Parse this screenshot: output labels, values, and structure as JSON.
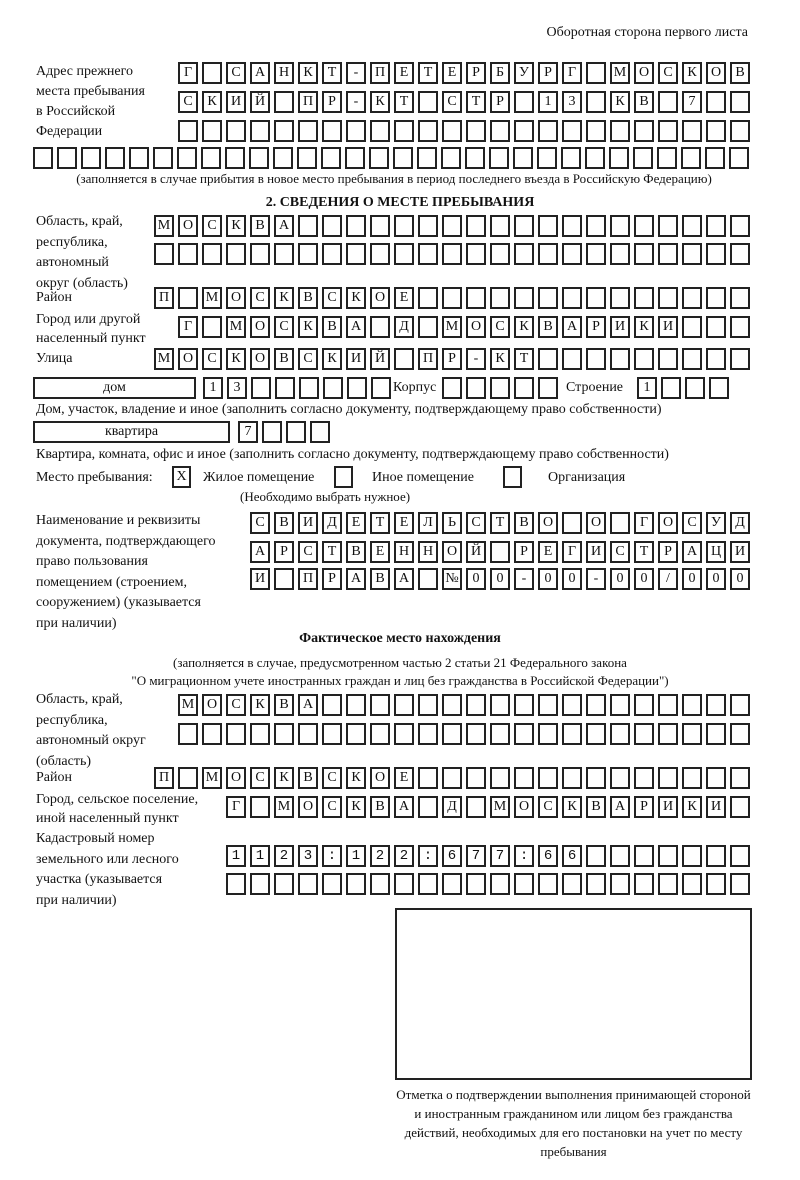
{
  "header": "Оборотная сторона первого листа",
  "prev_address": {
    "label": "Адрес прежнего\nместа пребывания\nв Российской\nФедерации",
    "rows": [
      "Г САНКТ-ПЕТЕРБУРГ МОСКОВ",
      "СКИЙ ПР-КТ СТР 13 КВ 7",
      "",
      ""
    ],
    "note": "(заполняется в случае прибытия в новое место пребывания в период последнего въезда в Российскую Федерацию)"
  },
  "section2": {
    "title": "2. СВЕДЕНИЯ О МЕСТЕ ПРЕБЫВАНИЯ",
    "region_label": "Область, край,\nреспублика,\nавтономный\nокруг (область)",
    "region_rows": [
      "МОСКВА",
      ""
    ],
    "district_label": "Район",
    "district": "П МОСКВСКОЕ",
    "city_label": "Город или другой\nнаселенный пункт",
    "city": "Г МОСКВА Д МОСКВАРИКИ",
    "street_label": "Улица",
    "street": "МОСКОВСКИЙ ПР-КТ",
    "house_type": "дом",
    "house": "13",
    "korpus_label": "Корпус",
    "korpus": "",
    "building_label": "Строение",
    "building": "1",
    "house_note": "Дом, участок, владение и иное (заполнить согласно документу, подтверждающему право собственности)",
    "flat_type": "квартира",
    "flat": "7",
    "flat_note": "Квартира, комната, офис и иное (заполнить согласно документу, подтверждающему право собственности)",
    "stay_label": "Место пребывания:",
    "options": [
      {
        "label": "Жилое помещение",
        "mark": "X"
      },
      {
        "label": "Иное помещение",
        "mark": ""
      },
      {
        "label": "Организация",
        "mark": ""
      }
    ],
    "options_note": "(Необходимо выбрать нужное)",
    "doc_label": "Наименование и реквизиты\nдокумента, подтверждающего\nправо пользования\nпомещением (строением,\nсооружением) (указывается\nпри наличии)",
    "doc_rows": [
      "СВИДЕТЕЛЬСТВО О ГОСУД",
      "АРСТВЕННОЙ РЕГИСТРАЦИ",
      "И ПРАВА №00-00-00/000"
    ]
  },
  "actual": {
    "title": "Фактическое место нахождения",
    "note1": "(заполняется в случае, предусмотренном частью 2 статьи 21 Федерального закона",
    "note2": "\"О миграционном учете иностранных граждан и лиц без гражданства в Российской Федерации\")",
    "region_label": "Область, край,\nреспублика,\nавтономный округ\n(область)",
    "region_rows": [
      "МОСКВА",
      ""
    ],
    "district_label": "Район",
    "district": "П МОСКВСКОЕ",
    "city_label": "Город, сельское поселение,\nиной населенный пункт",
    "city": "Г МОСКВА Д МОСКВАРИКИ",
    "cadastre_label": "Кадастровый номер\nземельного или лесного\nучастка (указывается\nпри наличии)",
    "cadastre_rows": [
      "1123:122:677:66",
      ""
    ]
  },
  "confirmation_caption": "Отметка о подтверждении выполнения принимающей стороной и иностранным гражданином или лицом без гражданства действий, необходимых для его постановки на учет по месту пребывания"
}
